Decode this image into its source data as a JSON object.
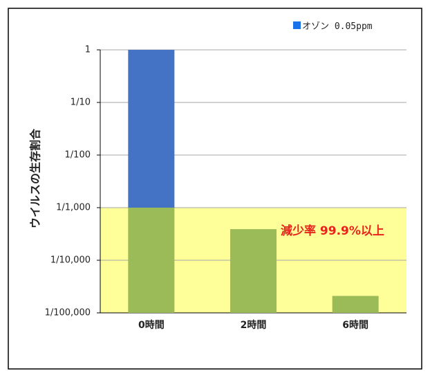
{
  "chart_data": {
    "type": "bar",
    "title": "",
    "xlabel": "",
    "ylabel": "ウイルスの生存割合",
    "yscale": "log",
    "ylim": [
      1e-05,
      1
    ],
    "ytick_values": [
      1,
      0.1,
      0.01,
      0.001,
      0.0001,
      1e-05
    ],
    "ytick_labels": [
      "1",
      "1/10",
      "1/100",
      "1/1,000",
      "1/10,000",
      "1/100,000"
    ],
    "categories": [
      "0時間",
      "2時間",
      "6時間"
    ],
    "series": [
      {
        "name": "オゾン 0.05ppm",
        "values": [
          1,
          0.00039,
          2.1e-05
        ]
      }
    ],
    "legend_position": "top-right",
    "grid": true,
    "highlight_band": {
      "from": 1e-05,
      "to": 0.001
    },
    "annotation": "減少率 99.9%以上",
    "colors": {
      "bar": "#4472c4",
      "bar_in_band": "#9bbb59",
      "band": "#ffff99",
      "annotation": "#e8231c",
      "legend_marker": "#1a73e8",
      "grid": "#a6a6a6"
    }
  }
}
